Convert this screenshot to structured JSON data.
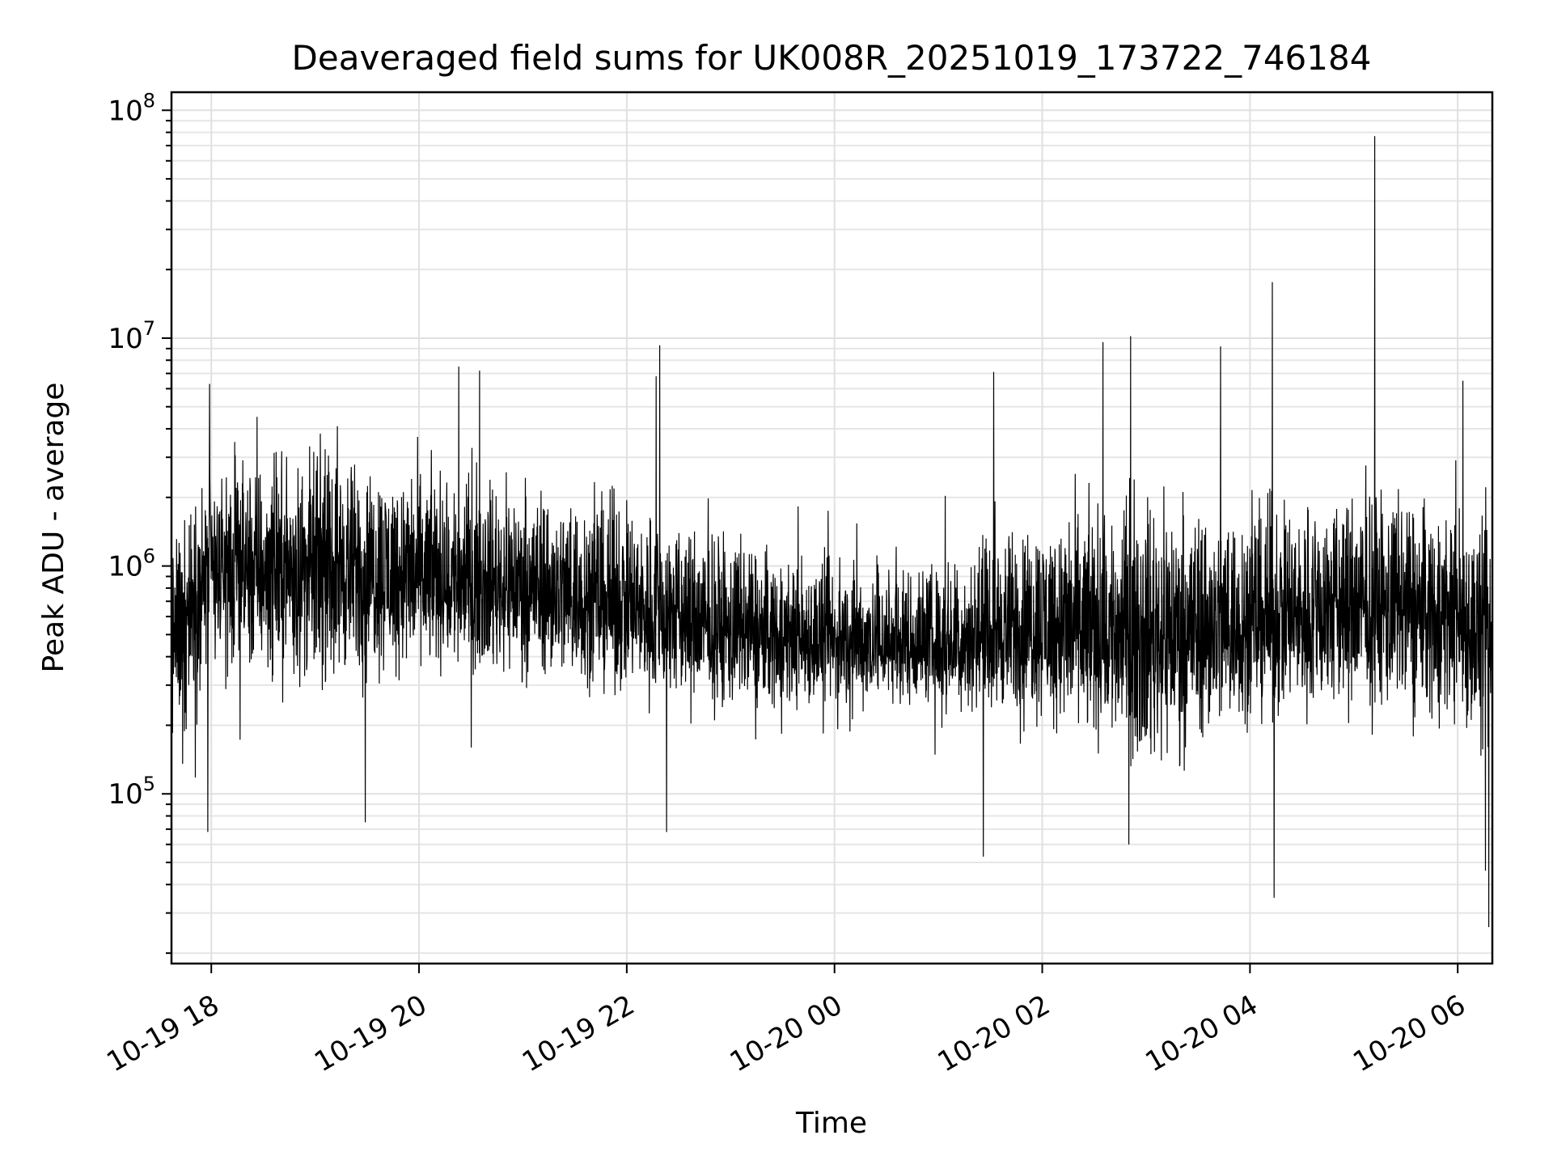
{
  "chart_data": {
    "type": "line",
    "title": "Deaveraged field sums for UK008R_20251019_173722_746184",
    "xlabel": "Time",
    "ylabel": "Peak ADU - average",
    "yscale": "log",
    "ylim": [
      18000,
      120000000
    ],
    "xlim": [
      "2025-10-19 17:37",
      "2025-10-20 06:20"
    ],
    "grid": true,
    "line_color": "#000000",
    "x_ticks": [
      {
        "value": "2025-10-19 18:00",
        "label": "10-19 18"
      },
      {
        "value": "2025-10-19 20:00",
        "label": "10-19 20"
      },
      {
        "value": "2025-10-19 22:00",
        "label": "10-19 22"
      },
      {
        "value": "2025-10-20 00:00",
        "label": "10-20 00"
      },
      {
        "value": "2025-10-20 02:00",
        "label": "10-20 02"
      },
      {
        "value": "2025-10-20 04:00",
        "label": "10-20 04"
      },
      {
        "value": "2025-10-20 06:00",
        "label": "10-20 06"
      }
    ],
    "y_ticks": [
      {
        "value": 100000,
        "base": "10",
        "exp": "5"
      },
      {
        "value": 1000000,
        "base": "10",
        "exp": "6"
      },
      {
        "value": 10000000,
        "base": "10",
        "exp": "7"
      },
      {
        "value": 100000000,
        "base": "10",
        "exp": "8"
      }
    ],
    "envelope": [
      {
        "x": "2025-10-19 17:37",
        "y_low": 80000,
        "y_mid": 500000,
        "y_high": 1800000
      },
      {
        "x": "2025-10-19 18:00",
        "y_low": 250000,
        "y_mid": 900000,
        "y_high": 4000000
      },
      {
        "x": "2025-10-19 19:00",
        "y_low": 200000,
        "y_mid": 1000000,
        "y_high": 4500000
      },
      {
        "x": "2025-10-19 20:00",
        "y_low": 250000,
        "y_mid": 900000,
        "y_high": 4000000
      },
      {
        "x": "2025-10-19 21:00",
        "y_low": 250000,
        "y_mid": 800000,
        "y_high": 3500000
      },
      {
        "x": "2025-10-19 22:00",
        "y_low": 200000,
        "y_mid": 650000,
        "y_high": 3000000
      },
      {
        "x": "2025-10-19 23:00",
        "y_low": 180000,
        "y_mid": 500000,
        "y_high": 2000000
      },
      {
        "x": "2025-10-20 00:00",
        "y_low": 200000,
        "y_mid": 450000,
        "y_high": 1500000
      },
      {
        "x": "2025-10-20 01:00",
        "y_low": 200000,
        "y_mid": 450000,
        "y_high": 1400000
      },
      {
        "x": "2025-10-20 02:00",
        "y_low": 150000,
        "y_mid": 550000,
        "y_high": 2500000
      },
      {
        "x": "2025-10-20 03:00",
        "y_low": 80000,
        "y_mid": 500000,
        "y_high": 3500000
      },
      {
        "x": "2025-10-20 04:00",
        "y_low": 150000,
        "y_mid": 550000,
        "y_high": 3000000
      },
      {
        "x": "2025-10-20 05:00",
        "y_low": 150000,
        "y_mid": 650000,
        "y_high": 3500000
      },
      {
        "x": "2025-10-20 06:00",
        "y_low": 150000,
        "y_mid": 600000,
        "y_high": 3000000
      },
      {
        "x": "2025-10-20 06:20",
        "y_low": 80000,
        "y_mid": 450000,
        "y_high": 2000000
      }
    ],
    "spikes": [
      {
        "x": "2025-10-19 17:59",
        "y": 6300000
      },
      {
        "x": "2025-10-19 17:58",
        "y": 68000
      },
      {
        "x": "2025-10-19 19:29",
        "y": 75000
      },
      {
        "x": "2025-10-19 20:23",
        "y": 7500000
      },
      {
        "x": "2025-10-19 20:35",
        "y": 7200000
      },
      {
        "x": "2025-10-19 22:17",
        "y": 6800000
      },
      {
        "x": "2025-10-19 22:19",
        "y": 9300000
      },
      {
        "x": "2025-10-19 22:23",
        "y": 68000
      },
      {
        "x": "2025-10-20 01:32",
        "y": 7100000
      },
      {
        "x": "2025-10-20 01:26",
        "y": 53000
      },
      {
        "x": "2025-10-20 02:35",
        "y": 9600000
      },
      {
        "x": "2025-10-20 02:51",
        "y": 10200000
      },
      {
        "x": "2025-10-20 03:43",
        "y": 9200000
      },
      {
        "x": "2025-10-20 04:13",
        "y": 17600000
      },
      {
        "x": "2025-10-20 04:14",
        "y": 35000
      },
      {
        "x": "2025-10-20 05:12",
        "y": 77000000
      },
      {
        "x": "2025-10-20 06:03",
        "y": 6500000
      },
      {
        "x": "2025-10-20 06:18",
        "y": 26000
      },
      {
        "x": "2025-10-20 06:16",
        "y": 46000
      }
    ]
  }
}
